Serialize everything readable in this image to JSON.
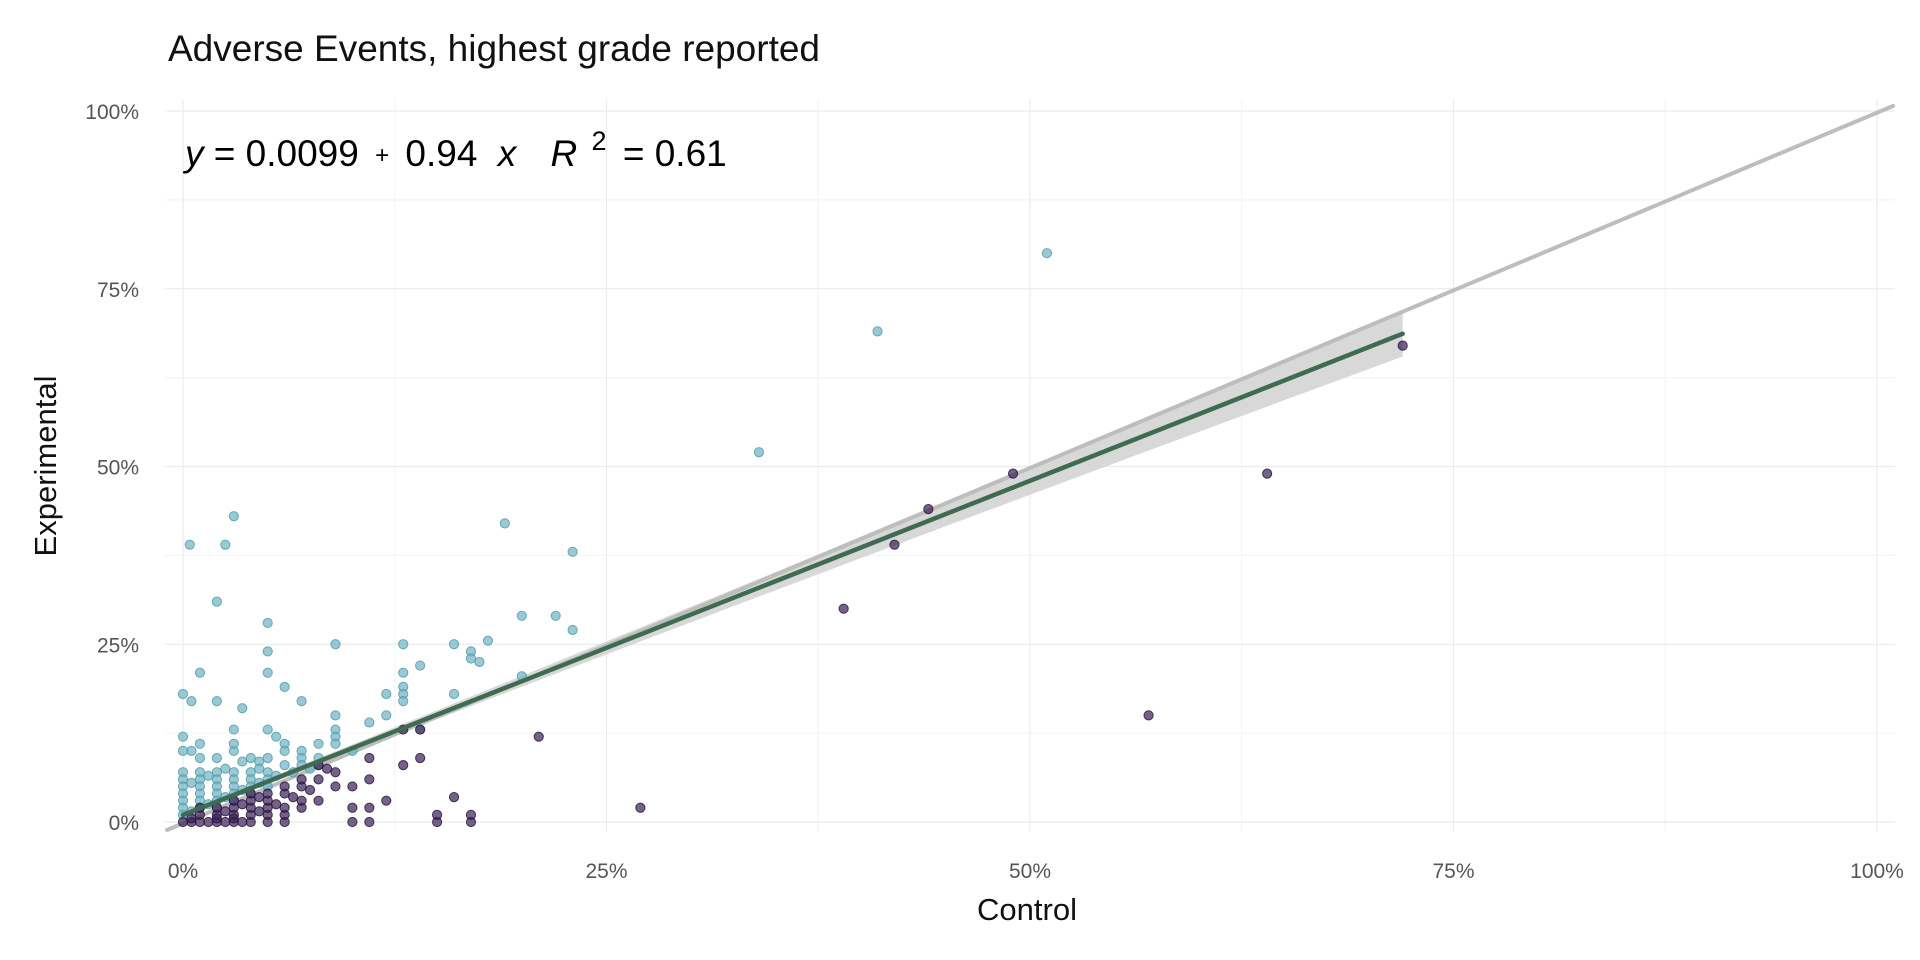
{
  "chart_data": {
    "type": "scatter",
    "title": "Adverse Events, highest grade reported",
    "xlabel": "Control",
    "ylabel": "Experimental",
    "xlim": [
      0,
      1
    ],
    "ylim": [
      0,
      1
    ],
    "x_ticks": [
      "0%",
      "25%",
      "50%",
      "75%",
      "100%"
    ],
    "y_ticks": [
      "0%",
      "25%",
      "50%",
      "75%",
      "100%"
    ],
    "tick_values": [
      0,
      0.25,
      0.5,
      0.75,
      1.0
    ],
    "grid": true,
    "legend": "none",
    "annotation": {
      "y": "y",
      "eq1": "= 0.0099",
      "plus": "+",
      "eq2": "0.94",
      "x": "x",
      "r": "R",
      "sup": "2",
      "eq3": "= 0.61"
    },
    "identity_line": {
      "from": [
        0,
        0
      ],
      "to": [
        1,
        1
      ],
      "color": "#bdbdbd"
    },
    "fit_line": {
      "intercept": 0.0099,
      "slope": 0.94,
      "x_range": [
        0,
        0.72
      ],
      "color": "#3e6b52",
      "band_color": "#d4d4d4"
    },
    "series": [
      {
        "color": "#6cb2c2",
        "stroke": "#4f98a8",
        "points": [
          [
            0.51,
            0.8
          ],
          [
            0.41,
            0.69
          ],
          [
            0.34,
            0.52
          ],
          [
            0.004,
            0.39
          ],
          [
            0.025,
            0.39
          ],
          [
            0.03,
            0.43
          ],
          [
            0.02,
            0.31
          ],
          [
            0.19,
            0.42
          ],
          [
            0.23,
            0.38
          ],
          [
            0.2,
            0.29
          ],
          [
            0.22,
            0.29
          ],
          [
            0.23,
            0.27
          ],
          [
            0.05,
            0.28
          ],
          [
            0.05,
            0.24
          ],
          [
            0.05,
            0.21
          ],
          [
            0.06,
            0.19
          ],
          [
            0.07,
            0.17
          ],
          [
            0.09,
            0.25
          ],
          [
            0.13,
            0.25
          ],
          [
            0.16,
            0.25
          ],
          [
            0.18,
            0.255
          ],
          [
            0.17,
            0.24
          ],
          [
            0.17,
            0.23
          ],
          [
            0.175,
            0.225
          ],
          [
            0.14,
            0.22
          ],
          [
            0.13,
            0.21
          ],
          [
            0.13,
            0.19
          ],
          [
            0.13,
            0.18
          ],
          [
            0.16,
            0.18
          ],
          [
            0.2,
            0.205
          ],
          [
            0.12,
            0.15
          ],
          [
            0.11,
            0.14
          ],
          [
            0.12,
            0.18
          ],
          [
            0.13,
            0.17
          ],
          [
            0.14,
            0.13
          ],
          [
            0.09,
            0.15
          ],
          [
            0.09,
            0.13
          ],
          [
            0.09,
            0.12
          ],
          [
            0.0,
            0.18
          ],
          [
            0.005,
            0.17
          ],
          [
            0.01,
            0.21
          ],
          [
            0.02,
            0.17
          ],
          [
            0.035,
            0.16
          ],
          [
            0.0,
            0.12
          ],
          [
            0.01,
            0.11
          ],
          [
            0.005,
            0.1
          ],
          [
            0.0,
            0.1
          ],
          [
            0.01,
            0.09
          ],
          [
            0.02,
            0.09
          ],
          [
            0.03,
            0.13
          ],
          [
            0.03,
            0.1
          ],
          [
            0.03,
            0.11
          ],
          [
            0.04,
            0.09
          ],
          [
            0.045,
            0.085
          ],
          [
            0.05,
            0.09
          ],
          [
            0.05,
            0.13
          ],
          [
            0.055,
            0.12
          ],
          [
            0.06,
            0.11
          ],
          [
            0.06,
            0.1
          ],
          [
            0.07,
            0.1
          ],
          [
            0.07,
            0.09
          ],
          [
            0.08,
            0.09
          ],
          [
            0.08,
            0.11
          ],
          [
            0.06,
            0.08
          ],
          [
            0.07,
            0.08
          ],
          [
            0.08,
            0.08
          ],
          [
            0.05,
            0.07
          ],
          [
            0.04,
            0.07
          ],
          [
            0.03,
            0.07
          ],
          [
            0.02,
            0.07
          ],
          [
            0.01,
            0.07
          ],
          [
            0.0,
            0.07
          ],
          [
            0.0,
            0.06
          ],
          [
            0.01,
            0.06
          ],
          [
            0.02,
            0.06
          ],
          [
            0.03,
            0.06
          ],
          [
            0.04,
            0.06
          ],
          [
            0.05,
            0.06
          ],
          [
            0.055,
            0.065
          ],
          [
            0.0,
            0.05
          ],
          [
            0.01,
            0.05
          ],
          [
            0.02,
            0.05
          ],
          [
            0.03,
            0.05
          ],
          [
            0.04,
            0.05
          ],
          [
            0.05,
            0.05
          ],
          [
            0.0,
            0.04
          ],
          [
            0.01,
            0.04
          ],
          [
            0.02,
            0.04
          ],
          [
            0.03,
            0.04
          ],
          [
            0.04,
            0.04
          ],
          [
            0.0,
            0.03
          ],
          [
            0.01,
            0.03
          ],
          [
            0.02,
            0.03
          ],
          [
            0.03,
            0.03
          ],
          [
            0.0,
            0.02
          ],
          [
            0.01,
            0.02
          ],
          [
            0.02,
            0.02
          ],
          [
            0.0,
            0.01
          ],
          [
            0.005,
            0.015
          ],
          [
            0.015,
            0.025
          ],
          [
            0.025,
            0.035
          ],
          [
            0.035,
            0.045
          ],
          [
            0.045,
            0.055
          ],
          [
            0.005,
            0.055
          ],
          [
            0.015,
            0.065
          ],
          [
            0.025,
            0.075
          ],
          [
            0.035,
            0.085
          ],
          [
            0.045,
            0.075
          ],
          [
            0.065,
            0.07
          ],
          [
            0.075,
            0.075
          ],
          [
            0.09,
            0.11
          ],
          [
            0.1,
            0.1
          ]
        ]
      },
      {
        "color": "#3b1f56",
        "stroke": "#241036",
        "points": [
          [
            0.72,
            0.67
          ],
          [
            0.64,
            0.49
          ],
          [
            0.49,
            0.49
          ],
          [
            0.44,
            0.44
          ],
          [
            0.42,
            0.39
          ],
          [
            0.39,
            0.3
          ],
          [
            0.57,
            0.15
          ],
          [
            0.27,
            0.02
          ],
          [
            0.21,
            0.12
          ],
          [
            0.0,
            0.0
          ],
          [
            0.005,
            0.0
          ],
          [
            0.01,
            0.0
          ],
          [
            0.015,
            0.0
          ],
          [
            0.02,
            0.0
          ],
          [
            0.025,
            0.0
          ],
          [
            0.03,
            0.0
          ],
          [
            0.035,
            0.0
          ],
          [
            0.04,
            0.0
          ],
          [
            0.05,
            0.0
          ],
          [
            0.06,
            0.0
          ],
          [
            0.1,
            0.0
          ],
          [
            0.11,
            0.0
          ],
          [
            0.15,
            0.0
          ],
          [
            0.17,
            0.0
          ],
          [
            0.005,
            0.005
          ],
          [
            0.01,
            0.01
          ],
          [
            0.02,
            0.01
          ],
          [
            0.03,
            0.01
          ],
          [
            0.04,
            0.01
          ],
          [
            0.05,
            0.01
          ],
          [
            0.06,
            0.01
          ],
          [
            0.15,
            0.01
          ],
          [
            0.17,
            0.01
          ],
          [
            0.01,
            0.02
          ],
          [
            0.02,
            0.02
          ],
          [
            0.03,
            0.02
          ],
          [
            0.04,
            0.02
          ],
          [
            0.05,
            0.02
          ],
          [
            0.06,
            0.02
          ],
          [
            0.07,
            0.02
          ],
          [
            0.1,
            0.02
          ],
          [
            0.11,
            0.02
          ],
          [
            0.03,
            0.03
          ],
          [
            0.04,
            0.03
          ],
          [
            0.05,
            0.03
          ],
          [
            0.07,
            0.03
          ],
          [
            0.08,
            0.03
          ],
          [
            0.12,
            0.03
          ],
          [
            0.16,
            0.035
          ],
          [
            0.04,
            0.04
          ],
          [
            0.05,
            0.04
          ],
          [
            0.06,
            0.04
          ],
          [
            0.07,
            0.05
          ],
          [
            0.09,
            0.05
          ],
          [
            0.1,
            0.05
          ],
          [
            0.06,
            0.05
          ],
          [
            0.07,
            0.06
          ],
          [
            0.08,
            0.06
          ],
          [
            0.11,
            0.06
          ],
          [
            0.13,
            0.08
          ],
          [
            0.14,
            0.09
          ],
          [
            0.11,
            0.09
          ],
          [
            0.09,
            0.07
          ],
          [
            0.085,
            0.075
          ],
          [
            0.08,
            0.08
          ],
          [
            0.14,
            0.13
          ],
          [
            0.13,
            0.13
          ],
          [
            0.02,
            0.005
          ],
          [
            0.03,
            0.005
          ],
          [
            0.045,
            0.015
          ],
          [
            0.055,
            0.025
          ],
          [
            0.065,
            0.035
          ],
          [
            0.075,
            0.045
          ],
          [
            0.035,
            0.025
          ],
          [
            0.025,
            0.015
          ],
          [
            0.045,
            0.035
          ]
        ]
      }
    ]
  }
}
